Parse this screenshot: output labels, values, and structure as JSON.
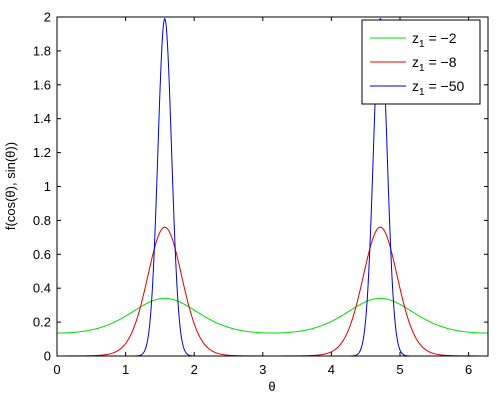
{
  "chart_data": {
    "type": "line",
    "xlabel": "θ",
    "ylabel": "f(cos(θ), sin(θ))",
    "xlim": [
      0,
      6.283
    ],
    "ylim": [
      0,
      2
    ],
    "xticks": [
      0,
      1,
      2,
      3,
      4,
      5,
      6
    ],
    "yticks": [
      0,
      0.2,
      0.4,
      0.6,
      0.8,
      1,
      1.2,
      1.4,
      1.6,
      1.8,
      2
    ],
    "xtick_labels": [
      "0",
      "1",
      "2",
      "3",
      "4",
      "5",
      "6"
    ],
    "ytick_labels": [
      "0",
      "0.2",
      "0.4",
      "0.6",
      "0.8",
      "1",
      "1.2",
      "1.4",
      "1.6",
      "1.8",
      "2"
    ],
    "grid": false,
    "legend_position": "top-right",
    "series": [
      {
        "name": "z",
        "subscript": "1",
        "value_text": " = −2",
        "color": "#00dd00",
        "z1": -2,
        "x": [
          0,
          0.4,
          0.8,
          1.2,
          1.4,
          1.571,
          1.8,
          2.2,
          2.6,
          3.142,
          3.6,
          4.0,
          4.4,
          4.712,
          5.0,
          5.4,
          5.8,
          6.283
        ],
        "y": [
          0.05,
          0.07,
          0.13,
          0.27,
          0.32,
          0.34,
          0.32,
          0.22,
          0.1,
          0.05,
          0.09,
          0.17,
          0.3,
          0.34,
          0.31,
          0.2,
          0.1,
          0.05
        ]
      },
      {
        "name": "z",
        "subscript": "1",
        "value_text": " = −8",
        "color": "#dd0000",
        "z1": -8,
        "x": [
          0.7,
          1.0,
          1.2,
          1.4,
          1.571,
          1.75,
          2.0,
          2.3,
          2.6,
          3.8,
          4.1,
          4.4,
          4.6,
          4.712,
          4.85,
          5.1,
          5.4,
          5.7
        ],
        "y": [
          0.01,
          0.11,
          0.32,
          0.65,
          0.76,
          0.66,
          0.32,
          0.08,
          0.01,
          0.01,
          0.1,
          0.42,
          0.7,
          0.76,
          0.67,
          0.32,
          0.08,
          0.01
        ]
      },
      {
        "name": "z",
        "subscript": "1",
        "value_text": " = −50",
        "color": "#0000dd",
        "z1": -50,
        "x": [
          1.0,
          1.3,
          1.45,
          1.53,
          1.571,
          1.61,
          1.7,
          1.85,
          2.1,
          4.2,
          4.45,
          4.6,
          4.67,
          4.712,
          4.75,
          4.84,
          4.99,
          5.2
        ],
        "y": [
          0.0,
          0.05,
          0.62,
          1.75,
          1.99,
          1.75,
          0.62,
          0.05,
          0.0,
          0.0,
          0.05,
          0.62,
          1.75,
          1.99,
          1.75,
          0.62,
          0.05,
          0.0
        ]
      }
    ]
  }
}
